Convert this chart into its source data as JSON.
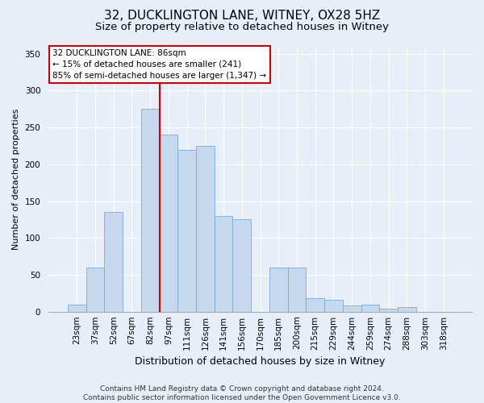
{
  "title": "32, DUCKLINGTON LANE, WITNEY, OX28 5HZ",
  "subtitle": "Size of property relative to detached houses in Witney",
  "xlabel": "Distribution of detached houses by size in Witney",
  "ylabel": "Number of detached properties",
  "categories": [
    "23sqm",
    "37sqm",
    "52sqm",
    "67sqm",
    "82sqm",
    "97sqm",
    "111sqm",
    "126sqm",
    "141sqm",
    "156sqm",
    "170sqm",
    "185sqm",
    "200sqm",
    "215sqm",
    "229sqm",
    "244sqm",
    "259sqm",
    "274sqm",
    "288sqm",
    "303sqm",
    "318sqm"
  ],
  "values": [
    10,
    60,
    135,
    0,
    275,
    240,
    220,
    225,
    130,
    125,
    0,
    60,
    60,
    18,
    16,
    8,
    10,
    4,
    6,
    0,
    0
  ],
  "bar_color": "#c5d8ee",
  "bar_edge_color": "#7baad4",
  "vline_color": "#cc0000",
  "vline_x_index": 4,
  "annotation_line1": "32 DUCKLINGTON LANE: 86sqm",
  "annotation_line2": "← 15% of detached houses are smaller (241)",
  "annotation_line3": "85% of semi-detached houses are larger (1,347) →",
  "annotation_box_color": "#ffffff",
  "annotation_box_edge": "#cc0000",
  "ylim": [
    0,
    360
  ],
  "yticks": [
    0,
    50,
    100,
    150,
    200,
    250,
    300,
    350
  ],
  "footnote": "Contains HM Land Registry data © Crown copyright and database right 2024.\nContains public sector information licensed under the Open Government Licence v3.0.",
  "background_color": "#e8eef7",
  "plot_background": "#e8eef7",
  "grid_color": "#ffffff",
  "title_fontsize": 11,
  "subtitle_fontsize": 9.5,
  "xlabel_fontsize": 9,
  "ylabel_fontsize": 8,
  "tick_fontsize": 7.5,
  "footnote_fontsize": 6.5
}
